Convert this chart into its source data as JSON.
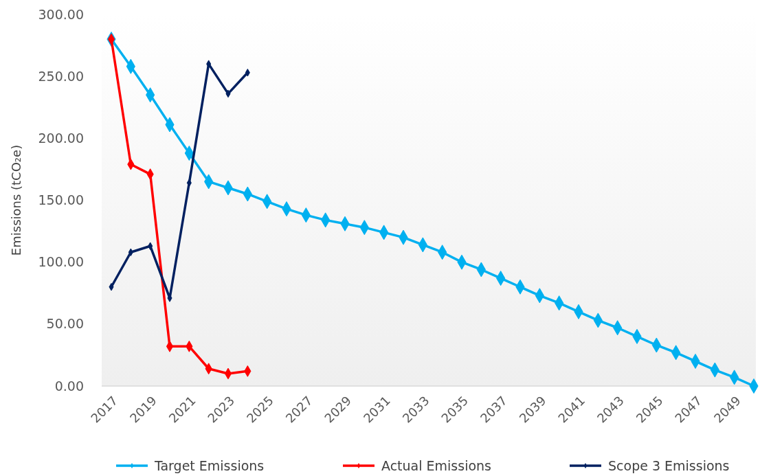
{
  "chart_data": {
    "type": "line",
    "ylabel": "Emissions (tCO₂e)",
    "categories": [
      "2017",
      null,
      "2019",
      null,
      "2021",
      null,
      "2023",
      null,
      "2025",
      null,
      "2027",
      null,
      "2029",
      null,
      "2031",
      null,
      "2033",
      null,
      "2035",
      null,
      "2037",
      null,
      "2039",
      null,
      "2041",
      null,
      "2043",
      null,
      "2045",
      null,
      "2047",
      null,
      "2049",
      null
    ],
    "ylim": [
      0,
      300
    ],
    "yticks": [
      {
        "value": 0,
        "label": "0.00"
      },
      {
        "value": 50,
        "label": "50.00"
      },
      {
        "value": 100,
        "label": "100.00"
      },
      {
        "value": 150,
        "label": "150.00"
      },
      {
        "value": 200,
        "label": "200.00"
      },
      {
        "value": 250,
        "label": "250.00"
      },
      {
        "value": 300,
        "label": "300.00"
      }
    ],
    "marker": "diamond",
    "legend": "bottom",
    "series": [
      {
        "name": "Target Emissions",
        "color": "#00b0f0",
        "values": [
          280,
          258,
          235,
          211,
          188,
          165,
          160,
          155,
          149,
          143,
          138,
          134,
          131,
          128,
          124,
          120,
          114,
          108,
          100,
          94,
          87,
          80,
          73,
          67,
          60,
          53,
          47,
          40,
          33,
          27,
          20,
          13,
          7,
          0
        ]
      },
      {
        "name": "Actual Emissions",
        "color": "#ff0000",
        "values": [
          280,
          179,
          171,
          32,
          32,
          14,
          10,
          12,
          null,
          null,
          null,
          null,
          null,
          null,
          null,
          null,
          null,
          null,
          null,
          null,
          null,
          null,
          null,
          null,
          null,
          null,
          null,
          null,
          null,
          null,
          null,
          null,
          null,
          null
        ]
      },
      {
        "name": "Scope 3 Emissions",
        "color": "#002060",
        "values": [
          80,
          108,
          113,
          71,
          164,
          260,
          236,
          253,
          null,
          null,
          null,
          null,
          null,
          null,
          null,
          null,
          null,
          null,
          null,
          null,
          null,
          null,
          null,
          null,
          null,
          null,
          null,
          null,
          null,
          null,
          null,
          null,
          null,
          null
        ]
      }
    ]
  }
}
